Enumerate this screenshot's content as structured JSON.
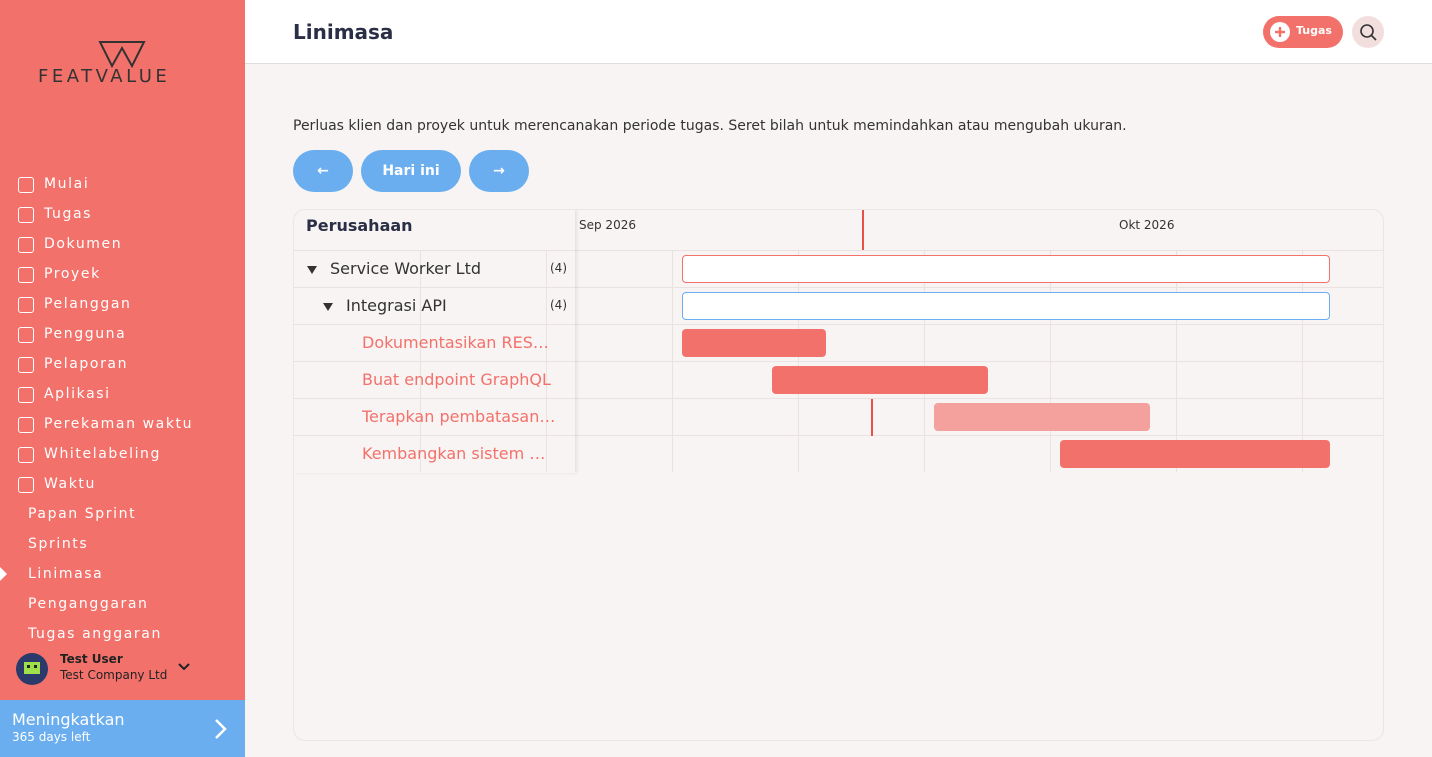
{
  "sidebar": {
    "logo": "FEATVALUE",
    "nav": [
      "Mulai",
      "Tugas",
      "Dokumen",
      "Proyek",
      "Pelanggan",
      "Pengguna",
      "Pelaporan",
      "Aplikasi",
      "Perekaman waktu",
      "Whitelabeling",
      "Waktu"
    ],
    "subnav": [
      "Papan Sprint",
      "Sprints",
      "Linimasa",
      "Penganggaran",
      "Tugas anggaran"
    ],
    "user": {
      "name": "Test User",
      "company": "Test Company Ltd"
    },
    "upgrade": {
      "title": "Meningkatkan",
      "subtitle": "365 days left"
    }
  },
  "header": {
    "title": "Linimasa",
    "add_button": "Tugas"
  },
  "description": "Perluas klien dan proyek untuk merencanakan periode tugas. Seret bilah untuk memindahkan atau mengubah ukuran.",
  "nav_buttons": [
    "←",
    "Hari ini",
    "→"
  ],
  "timeline": {
    "column_header": "Perusahaan",
    "months": [
      "Sep 2026",
      "Okt 2026"
    ],
    "rows": [
      {
        "label": "Service Worker Ltd",
        "count": "(4)"
      },
      {
        "label": "Integrasi API",
        "count": "(4)"
      },
      {
        "label": "Dokumentasikan REST API"
      },
      {
        "label": "Buat endpoint GraphQL"
      },
      {
        "label": "Terapkan pembatasan laju"
      },
      {
        "label": "Kembangkan sistem webhook"
      }
    ]
  }
}
